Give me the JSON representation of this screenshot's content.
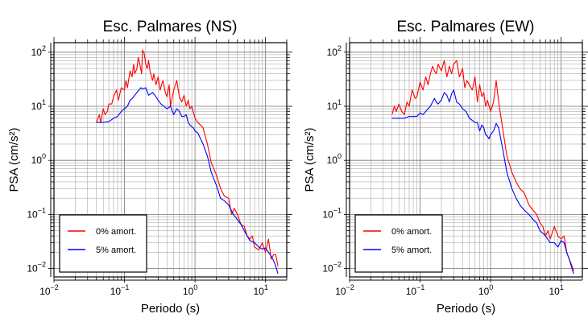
{
  "chart_data": [
    {
      "type": "line",
      "title": "Esc. Palmares (NS)",
      "xlabel": "Periodo (s)",
      "ylabel": "PSA (cm/s²)",
      "xscale": "log",
      "yscale": "log",
      "xlim": [
        0.01,
        20
      ],
      "ylim": [
        0.007,
        150
      ],
      "xticks": [
        {
          "v": 0.01,
          "base": "10",
          "exp": "−2"
        },
        {
          "v": 0.1,
          "base": "10",
          "exp": "−1"
        },
        {
          "v": 1,
          "base": "10",
          "exp": "0"
        },
        {
          "v": 10,
          "base": "10",
          "exp": "1"
        }
      ],
      "yticks": [
        {
          "v": 0.01,
          "base": "10",
          "exp": "−2"
        },
        {
          "v": 0.1,
          "base": "10",
          "exp": "−1"
        },
        {
          "v": 1,
          "base": "10",
          "exp": "0"
        },
        {
          "v": 10,
          "base": "10",
          "exp": "1"
        },
        {
          "v": 100,
          "base": "10",
          "exp": "2"
        }
      ],
      "grid": true,
      "legend_position": "bottom-left",
      "series": [
        {
          "name": "0% amort.",
          "color": "#ff0000",
          "x": [
            0.04,
            0.044,
            0.046,
            0.05,
            0.053,
            0.057,
            0.06,
            0.066,
            0.07,
            0.077,
            0.082,
            0.09,
            0.1,
            0.105,
            0.11,
            0.12,
            0.128,
            0.135,
            0.14,
            0.15,
            0.157,
            0.165,
            0.175,
            0.18,
            0.19,
            0.2,
            0.21,
            0.22,
            0.23,
            0.25,
            0.26,
            0.28,
            0.3,
            0.32,
            0.35,
            0.38,
            0.4,
            0.43,
            0.45,
            0.5,
            0.55,
            0.6,
            0.65,
            0.7,
            0.75,
            0.8,
            0.85,
            0.9,
            1.0,
            1.1,
            1.2,
            1.3,
            1.5,
            1.7,
            2.0,
            2.3,
            2.6,
            3.0,
            3.3,
            3.6,
            4.0,
            4.5,
            5.0,
            5.5,
            6.0,
            6.5,
            7.0,
            8.0,
            9.0,
            10.0,
            11.0,
            12.0,
            13.0,
            14.0,
            15.0
          ],
          "y": [
            5,
            7,
            5,
            9,
            7,
            8,
            11,
            11,
            15,
            20,
            13,
            22,
            20,
            30,
            22,
            45,
            35,
            60,
            40,
            50,
            80,
            60,
            40,
            110,
            95,
            60,
            50,
            70,
            45,
            30,
            40,
            25,
            35,
            20,
            30,
            18,
            15,
            25,
            10,
            20,
            30,
            15,
            12,
            16,
            10,
            13,
            9,
            10,
            6,
            5,
            4.5,
            4,
            2,
            0.9,
            0.55,
            0.3,
            0.22,
            0.2,
            0.1,
            0.13,
            0.1,
            0.065,
            0.06,
            0.04,
            0.035,
            0.04,
            0.025,
            0.022,
            0.03,
            0.02,
            0.035,
            0.015,
            0.018,
            0.018,
            0.011
          ]
        },
        {
          "name": "5% amort.",
          "color": "#0000ff",
          "x": [
            0.04,
            0.05,
            0.06,
            0.07,
            0.08,
            0.09,
            0.1,
            0.11,
            0.12,
            0.13,
            0.14,
            0.15,
            0.16,
            0.17,
            0.18,
            0.2,
            0.22,
            0.25,
            0.28,
            0.3,
            0.33,
            0.36,
            0.4,
            0.45,
            0.5,
            0.55,
            0.6,
            0.65,
            0.7,
            0.75,
            0.8,
            0.85,
            0.9,
            0.95,
            1.0,
            1.1,
            1.2,
            1.3,
            1.5,
            1.7,
            2.0,
            2.3,
            2.6,
            3.0,
            3.5,
            4.0,
            4.5,
            5.0,
            5.5,
            6.0,
            7.0,
            8.0,
            9.0,
            10.0,
            11.0,
            12.0,
            13.0,
            14.0,
            15.0
          ],
          "y": [
            5,
            5,
            5.2,
            6,
            6.5,
            8,
            9,
            10,
            13,
            14,
            16,
            18,
            20,
            22,
            21,
            22,
            16,
            18,
            15,
            13,
            11,
            10,
            9,
            10,
            7,
            9,
            8,
            6.5,
            6.5,
            7,
            5,
            4.5,
            4.2,
            4,
            3.5,
            3.2,
            2.5,
            2,
            1.2,
            0.6,
            0.35,
            0.2,
            0.18,
            0.15,
            0.1,
            0.08,
            0.065,
            0.05,
            0.04,
            0.033,
            0.03,
            0.025,
            0.023,
            0.024,
            0.02,
            0.017,
            0.014,
            0.011,
            0.008
          ]
        }
      ]
    },
    {
      "type": "line",
      "title": "Esc. Palmares (EW)",
      "xlabel": "Periodo (s)",
      "ylabel": "PSA (cm/s²)",
      "xscale": "log",
      "yscale": "log",
      "xlim": [
        0.01,
        20
      ],
      "ylim": [
        0.007,
        150
      ],
      "xticks": [
        {
          "v": 0.01,
          "base": "10",
          "exp": "−2"
        },
        {
          "v": 0.1,
          "base": "10",
          "exp": "−1"
        },
        {
          "v": 1,
          "base": "10",
          "exp": "0"
        },
        {
          "v": 10,
          "base": "10",
          "exp": "1"
        }
      ],
      "yticks": [
        {
          "v": 0.01,
          "base": "10",
          "exp": "−2"
        },
        {
          "v": 0.1,
          "base": "10",
          "exp": "−1"
        },
        {
          "v": 1,
          "base": "10",
          "exp": "0"
        },
        {
          "v": 10,
          "base": "10",
          "exp": "1"
        },
        {
          "v": 100,
          "base": "10",
          "exp": "2"
        }
      ],
      "grid": true,
      "legend_position": "bottom-left",
      "series": [
        {
          "name": "0% amort.",
          "color": "#ff0000",
          "x": [
            0.04,
            0.043,
            0.046,
            0.05,
            0.055,
            0.06,
            0.065,
            0.07,
            0.077,
            0.085,
            0.09,
            0.1,
            0.11,
            0.12,
            0.13,
            0.14,
            0.15,
            0.16,
            0.17,
            0.18,
            0.2,
            0.22,
            0.24,
            0.26,
            0.28,
            0.3,
            0.33,
            0.36,
            0.4,
            0.43,
            0.46,
            0.5,
            0.55,
            0.6,
            0.65,
            0.7,
            0.75,
            0.8,
            0.85,
            0.9,
            1.0,
            1.1,
            1.2,
            1.3,
            1.5,
            1.7,
            2.0,
            2.3,
            2.6,
            3.0,
            3.5,
            4.0,
            4.5,
            5.0,
            5.5,
            6.0,
            6.5,
            7.0,
            8.0,
            9.0,
            10.0,
            11.0,
            12.0,
            13.0,
            14.0,
            15.0
          ],
          "y": [
            7,
            10,
            8,
            11,
            8,
            7,
            12,
            10,
            20,
            14,
            15,
            28,
            20,
            35,
            25,
            40,
            55,
            45,
            40,
            60,
            45,
            70,
            35,
            55,
            40,
            60,
            70,
            35,
            50,
            22,
            30,
            25,
            20,
            35,
            12,
            25,
            15,
            18,
            10,
            13,
            8,
            12,
            30,
            12,
            3.5,
            1.2,
            0.6,
            0.4,
            0.3,
            0.25,
            0.15,
            0.12,
            0.1,
            0.07,
            0.06,
            0.04,
            0.05,
            0.035,
            0.06,
            0.04,
            0.035,
            0.04,
            0.02,
            0.015,
            0.012,
            0.009
          ]
        },
        {
          "name": "5% amort.",
          "color": "#0000ff",
          "x": [
            0.04,
            0.05,
            0.06,
            0.07,
            0.08,
            0.09,
            0.1,
            0.11,
            0.12,
            0.13,
            0.14,
            0.15,
            0.16,
            0.17,
            0.18,
            0.2,
            0.22,
            0.24,
            0.26,
            0.28,
            0.3,
            0.33,
            0.36,
            0.4,
            0.45,
            0.5,
            0.55,
            0.6,
            0.65,
            0.7,
            0.75,
            0.8,
            0.85,
            0.9,
            0.95,
            1.0,
            1.1,
            1.2,
            1.3,
            1.5,
            1.7,
            2.0,
            2.3,
            2.6,
            3.0,
            3.5,
            4.0,
            4.5,
            5.0,
            5.5,
            6.0,
            7.0,
            8.0,
            9.0,
            10.0,
            11.0,
            12.0,
            13.0,
            14.0,
            15.0
          ],
          "y": [
            6,
            6,
            6,
            6.5,
            6.5,
            6.5,
            7.5,
            7,
            8,
            9,
            10,
            12,
            14,
            12,
            11,
            13,
            18,
            16,
            12,
            17,
            20,
            12,
            11,
            9,
            8,
            6,
            5.5,
            5,
            5,
            3.5,
            4.5,
            4,
            3,
            2.8,
            2.5,
            3,
            3.5,
            4.8,
            4,
            1.5,
            0.6,
            0.3,
            0.2,
            0.15,
            0.12,
            0.1,
            0.08,
            0.07,
            0.05,
            0.045,
            0.04,
            0.03,
            0.03,
            0.025,
            0.033,
            0.03,
            0.02,
            0.015,
            0.011,
            0.008
          ]
        }
      ]
    }
  ]
}
